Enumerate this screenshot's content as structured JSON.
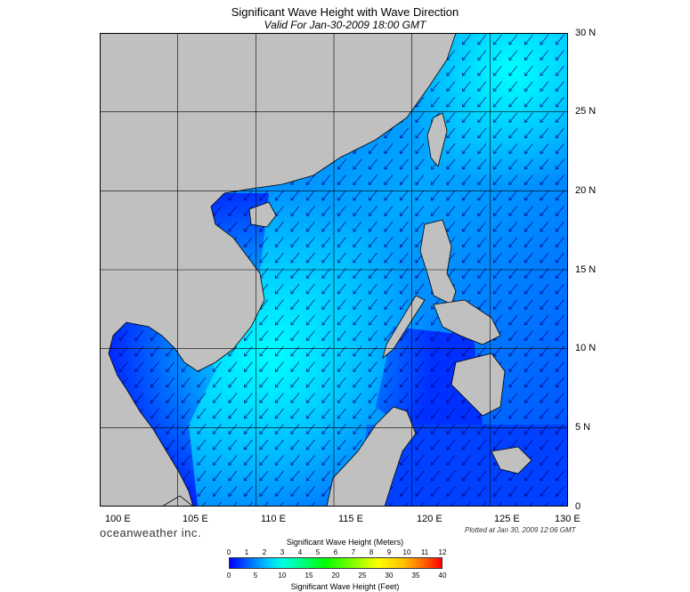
{
  "title": "Significant Wave Height with Wave Direction",
  "subtitle": "Valid For Jan-30-2009 18:00 GMT",
  "lat_labels": [
    "30 N",
    "25 N",
    "20 N",
    "15 N",
    "10 N",
    "5 N",
    "0"
  ],
  "lon_labels": [
    "100 E",
    "105 E",
    "110 E",
    "115 E",
    "120 E",
    "125 E",
    "130 E"
  ],
  "brand": "oceanweather inc.",
  "plotted": "Plotted at Jan 30, 2009 12:06 GMT",
  "legend": {
    "title_top": "Significant Wave Height (Meters)",
    "title_bottom": "Significant Wave Height (Feet)",
    "meters": [
      "0",
      "1",
      "2",
      "3",
      "4",
      "5",
      "6",
      "7",
      "8",
      "9",
      "10",
      "11",
      "12"
    ],
    "feet": [
      "0",
      "5",
      "10",
      "15",
      "20",
      "25",
      "30",
      "35",
      "40"
    ]
  },
  "colors": {
    "land": "#c0c0c0",
    "ocean_low": "#0000ff",
    "ocean_mid": "#0099ff",
    "ocean_high": "#00ffff",
    "arrow": "#000080"
  },
  "map": {
    "lon_range": [
      100,
      130
    ],
    "lat_range": [
      0,
      30
    ],
    "wave_direction": "predominantly from the northeast (arrows pointing southwest)"
  }
}
